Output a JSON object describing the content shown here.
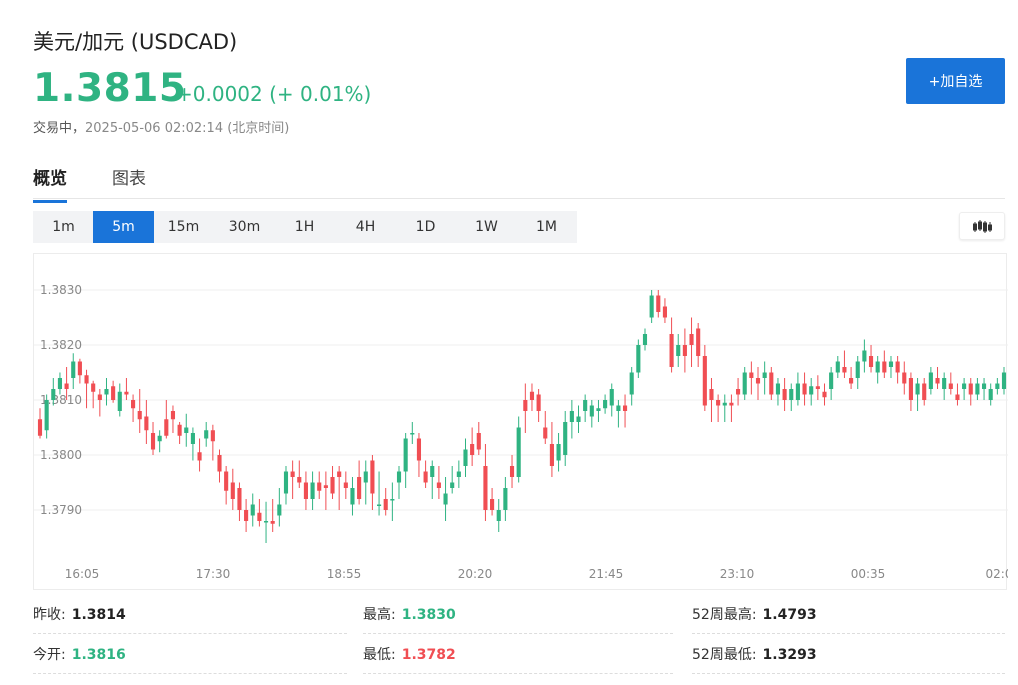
{
  "header": {
    "title": "美元/加元 (USDCAD)",
    "price": "1.3815",
    "change": "+0.0002 (+ 0.01%)",
    "status": "交易中，",
    "timestamp": "2025-05-06 02:02:14 (北京时间)",
    "watch_button": "+加自选"
  },
  "tabs": [
    {
      "label": "概览",
      "active": true
    },
    {
      "label": "图表",
      "active": false
    }
  ],
  "intervals": [
    {
      "label": "1m",
      "active": false
    },
    {
      "label": "5m",
      "active": true
    },
    {
      "label": "15m",
      "active": false
    },
    {
      "label": "30m",
      "active": false
    },
    {
      "label": "1H",
      "active": false
    },
    {
      "label": "4H",
      "active": false
    },
    {
      "label": "1D",
      "active": false
    },
    {
      "label": "1W",
      "active": false
    },
    {
      "label": "1M",
      "active": false
    }
  ],
  "chart_type_icon": "candlestick-icon",
  "colors": {
    "up": "#2fb382",
    "down": "#f04e53",
    "accent": "#1a74d9"
  },
  "chart_data": {
    "type": "candlestick",
    "y_ticks": [
      "1.3830",
      "1.3820",
      "1.3810",
      "1.3800",
      "1.3790"
    ],
    "x_ticks": [
      "16:05",
      "17:30",
      "18:55",
      "20:20",
      "21:45",
      "23:10",
      "00:35",
      "02:0"
    ],
    "ylim": [
      1.3782,
      1.3834
    ],
    "grid": true,
    "candles": [
      [
        1.38065,
        1.38085,
        1.3803,
        1.38035
      ],
      [
        1.38045,
        1.3811,
        1.3803,
        1.381
      ],
      [
        1.381,
        1.3814,
        1.3809,
        1.3812
      ],
      [
        1.3812,
        1.3815,
        1.3811,
        1.3814
      ],
      [
        1.3813,
        1.3816,
        1.381,
        1.3812
      ],
      [
        1.3814,
        1.38185,
        1.3812,
        1.3817
      ],
      [
        1.3817,
        1.38175,
        1.3813,
        1.38145
      ],
      [
        1.38145,
        1.38155,
        1.38085,
        1.3813
      ],
      [
        1.3813,
        1.38135,
        1.38085,
        1.38115
      ],
      [
        1.3811,
        1.3812,
        1.3807,
        1.381
      ],
      [
        1.3811,
        1.3814,
        1.3809,
        1.3812
      ],
      [
        1.38125,
        1.38135,
        1.38095,
        1.381
      ],
      [
        1.3808,
        1.3813,
        1.3807,
        1.38115
      ],
      [
        1.38115,
        1.3814,
        1.381,
        1.3811
      ],
      [
        1.381,
        1.3811,
        1.3806,
        1.38085
      ],
      [
        1.3808,
        1.3812,
        1.3804,
        1.38065
      ],
      [
        1.3807,
        1.381,
        1.3802,
        1.38045
      ],
      [
        1.3804,
        1.3806,
        1.38,
        1.3801
      ],
      [
        1.38025,
        1.38045,
        1.38005,
        1.38035
      ],
      [
        1.38065,
        1.381,
        1.3803,
        1.38035
      ],
      [
        1.3808,
        1.3809,
        1.3804,
        1.38065
      ],
      [
        1.38055,
        1.3806,
        1.3802,
        1.38035
      ],
      [
        1.3804,
        1.38075,
        1.38015,
        1.3805
      ],
      [
        1.3802,
        1.3805,
        1.3799,
        1.3804
      ],
      [
        1.38005,
        1.3803,
        1.3797,
        1.3799
      ],
      [
        1.3803,
        1.3806,
        1.38015,
        1.38045
      ],
      [
        1.38045,
        1.38055,
        1.3799,
        1.38025
      ],
      [
        1.38,
        1.3801,
        1.3795,
        1.3797
      ],
      [
        1.3797,
        1.3798,
        1.3791,
        1.37935
      ],
      [
        1.3795,
        1.37975,
        1.379,
        1.3792
      ],
      [
        1.3794,
        1.3795,
        1.3788,
        1.379
      ],
      [
        1.379,
        1.3792,
        1.3786,
        1.3788
      ],
      [
        1.3789,
        1.3793,
        1.3787,
        1.3791
      ],
      [
        1.37895,
        1.3792,
        1.3787,
        1.3788
      ],
      [
        1.3788,
        1.37915,
        1.3784,
        1.3788
      ],
      [
        1.3788,
        1.3792,
        1.3786,
        1.37875
      ],
      [
        1.3789,
        1.3794,
        1.3787,
        1.3791
      ],
      [
        1.3793,
        1.3798,
        1.3791,
        1.3797
      ],
      [
        1.3797,
        1.3799,
        1.3792,
        1.3796
      ],
      [
        1.3796,
        1.3799,
        1.3794,
        1.3795
      ],
      [
        1.3795,
        1.3797,
        1.379,
        1.3792
      ],
      [
        1.3792,
        1.3797,
        1.379,
        1.3795
      ],
      [
        1.3795,
        1.3797,
        1.3792,
        1.37935
      ],
      [
        1.37945,
        1.3797,
        1.379,
        1.3794
      ],
      [
        1.3796,
        1.3798,
        1.3792,
        1.3793
      ],
      [
        1.3797,
        1.3798,
        1.379,
        1.3796
      ],
      [
        1.3795,
        1.3797,
        1.3792,
        1.3794
      ],
      [
        1.3791,
        1.3796,
        1.3789,
        1.3794
      ],
      [
        1.3796,
        1.3799,
        1.3791,
        1.3792
      ],
      [
        1.3795,
        1.3799,
        1.3791,
        1.3797
      ],
      [
        1.3799,
        1.38,
        1.379,
        1.3793
      ],
      [
        1.3791,
        1.3797,
        1.3789,
        1.3791
      ],
      [
        1.3792,
        1.3794,
        1.3789,
        1.379
      ],
      [
        1.3792,
        1.3795,
        1.3788,
        1.3792
      ],
      [
        1.3795,
        1.3798,
        1.3792,
        1.3797
      ],
      [
        1.3797,
        1.3804,
        1.3794,
        1.3803
      ],
      [
        1.3804,
        1.3806,
        1.3802,
        1.3804
      ],
      [
        1.3803,
        1.3804,
        1.3796,
        1.3799
      ],
      [
        1.3797,
        1.3799,
        1.3794,
        1.3795
      ],
      [
        1.3796,
        1.3799,
        1.3792,
        1.3798
      ],
      [
        1.3795,
        1.3798,
        1.3792,
        1.3794
      ],
      [
        1.3791,
        1.3796,
        1.3788,
        1.3793
      ],
      [
        1.3794,
        1.3798,
        1.3793,
        1.3795
      ],
      [
        1.3796,
        1.3799,
        1.3794,
        1.3797
      ],
      [
        1.3798,
        1.3803,
        1.3796,
        1.3801
      ],
      [
        1.3802,
        1.3805,
        1.3798,
        1.38
      ],
      [
        1.3804,
        1.3806,
        1.38,
        1.3801
      ],
      [
        1.3798,
        1.3802,
        1.3788,
        1.379
      ],
      [
        1.3792,
        1.3794,
        1.3789,
        1.379
      ],
      [
        1.3788,
        1.3792,
        1.3786,
        1.379
      ],
      [
        1.379,
        1.3796,
        1.3788,
        1.3794
      ],
      [
        1.3798,
        1.38,
        1.3794,
        1.3796
      ],
      [
        1.3796,
        1.3807,
        1.3795,
        1.3805
      ],
      [
        1.381,
        1.3813,
        1.3804,
        1.3808
      ],
      [
        1.38115,
        1.3813,
        1.3808,
        1.381
      ],
      [
        1.3811,
        1.3812,
        1.3806,
        1.3808
      ],
      [
        1.3805,
        1.3808,
        1.3802,
        1.3803
      ],
      [
        1.3802,
        1.3806,
        1.3796,
        1.3798
      ],
      [
        1.3799,
        1.3804,
        1.3797,
        1.3802
      ],
      [
        1.38,
        1.3808,
        1.3798,
        1.3806
      ],
      [
        1.3806,
        1.381,
        1.3803,
        1.3808
      ],
      [
        1.3806,
        1.3809,
        1.3804,
        1.3807
      ],
      [
        1.3808,
        1.3811,
        1.3806,
        1.381
      ],
      [
        1.3807,
        1.381,
        1.3805,
        1.3809
      ],
      [
        1.3808,
        1.381,
        1.3806,
        1.38085
      ],
      [
        1.38085,
        1.3811,
        1.38075,
        1.381
      ],
      [
        1.3809,
        1.3813,
        1.3807,
        1.3812
      ],
      [
        1.3808,
        1.381,
        1.3805,
        1.3809
      ],
      [
        1.3809,
        1.3811,
        1.3805,
        1.3808
      ],
      [
        1.3811,
        1.3816,
        1.3809,
        1.3815
      ],
      [
        1.3815,
        1.3821,
        1.3814,
        1.382
      ],
      [
        1.382,
        1.3823,
        1.3819,
        1.3822
      ],
      [
        1.3825,
        1.383,
        1.3824,
        1.3829
      ],
      [
        1.3829,
        1.383,
        1.3825,
        1.3826
      ],
      [
        1.3827,
        1.38285,
        1.3824,
        1.3825
      ],
      [
        1.3822,
        1.3825,
        1.3815,
        1.3816
      ],
      [
        1.3818,
        1.3822,
        1.3816,
        1.382
      ],
      [
        1.382,
        1.3823,
        1.3815,
        1.3818
      ],
      [
        1.3822,
        1.3825,
        1.3816,
        1.382
      ],
      [
        1.3823,
        1.3824,
        1.3816,
        1.3818
      ],
      [
        1.3818,
        1.382,
        1.3808,
        1.3809
      ],
      [
        1.3812,
        1.3814,
        1.3806,
        1.381
      ],
      [
        1.381,
        1.3811,
        1.3806,
        1.3809
      ],
      [
        1.3809,
        1.3811,
        1.3806,
        1.38095
      ],
      [
        1.38095,
        1.3811,
        1.3806,
        1.3809
      ],
      [
        1.3812,
        1.3814,
        1.3809,
        1.3811
      ],
      [
        1.3811,
        1.3816,
        1.381,
        1.3815
      ],
      [
        1.3815,
        1.3817,
        1.3811,
        1.3814
      ],
      [
        1.3814,
        1.3816,
        1.381,
        1.3813
      ],
      [
        1.3814,
        1.3817,
        1.3811,
        1.3815
      ],
      [
        1.3815,
        1.3816,
        1.381,
        1.3811
      ],
      [
        1.3811,
        1.3814,
        1.3809,
        1.3813
      ],
      [
        1.3812,
        1.3814,
        1.3808,
        1.381
      ],
      [
        1.381,
        1.3813,
        1.3808,
        1.3812
      ],
      [
        1.381,
        1.3815,
        1.3809,
        1.3813
      ],
      [
        1.3813,
        1.3815,
        1.3809,
        1.3811
      ],
      [
        1.3811,
        1.3814,
        1.3809,
        1.38125
      ],
      [
        1.38125,
        1.38145,
        1.381,
        1.3812
      ],
      [
        1.38115,
        1.3813,
        1.3809,
        1.38105
      ],
      [
        1.3812,
        1.3816,
        1.381,
        1.3815
      ],
      [
        1.3815,
        1.3818,
        1.3814,
        1.3817
      ],
      [
        1.3816,
        1.3819,
        1.3814,
        1.3815
      ],
      [
        1.3814,
        1.3816,
        1.3812,
        1.3813
      ],
      [
        1.3814,
        1.3818,
        1.3812,
        1.3817
      ],
      [
        1.3817,
        1.3821,
        1.3815,
        1.3819
      ],
      [
        1.3818,
        1.382,
        1.3815,
        1.3816
      ],
      [
        1.3815,
        1.3818,
        1.3813,
        1.3817
      ],
      [
        1.3817,
        1.3819,
        1.3814,
        1.3815
      ],
      [
        1.3816,
        1.3818,
        1.3814,
        1.3817
      ],
      [
        1.3817,
        1.3818,
        1.3813,
        1.3815
      ],
      [
        1.3815,
        1.3817,
        1.3811,
        1.3813
      ],
      [
        1.3814,
        1.3815,
        1.3808,
        1.381
      ],
      [
        1.3811,
        1.3814,
        1.3808,
        1.3813
      ],
      [
        1.3813,
        1.3814,
        1.3809,
        1.381
      ],
      [
        1.3812,
        1.3816,
        1.3811,
        1.3815
      ],
      [
        1.3814,
        1.3816,
        1.3812,
        1.3813
      ],
      [
        1.3812,
        1.3815,
        1.381,
        1.3814
      ],
      [
        1.3813,
        1.3815,
        1.3811,
        1.3812
      ],
      [
        1.3811,
        1.3813,
        1.3809,
        1.381
      ],
      [
        1.3812,
        1.3814,
        1.381,
        1.3813
      ],
      [
        1.3813,
        1.3814,
        1.3809,
        1.3811
      ],
      [
        1.3811,
        1.3814,
        1.381,
        1.3813
      ],
      [
        1.3812,
        1.3814,
        1.381,
        1.3813
      ],
      [
        1.381,
        1.3813,
        1.3809,
        1.3812
      ],
      [
        1.3812,
        1.3814,
        1.3811,
        1.3813
      ],
      [
        1.3812,
        1.3816,
        1.3811,
        1.3815
      ]
    ]
  },
  "stats": [
    {
      "label": "昨收:",
      "value": "1.3814",
      "color": "black"
    },
    {
      "label": "最高:",
      "value": "1.3830",
      "color": "green"
    },
    {
      "label": "52周最高:",
      "value": "1.4793",
      "color": "black"
    },
    {
      "label": "今开:",
      "value": "1.3816",
      "color": "green"
    },
    {
      "label": "最低:",
      "value": "1.3782",
      "color": "red"
    },
    {
      "label": "52周最低:",
      "value": "1.3293",
      "color": "black"
    }
  ]
}
